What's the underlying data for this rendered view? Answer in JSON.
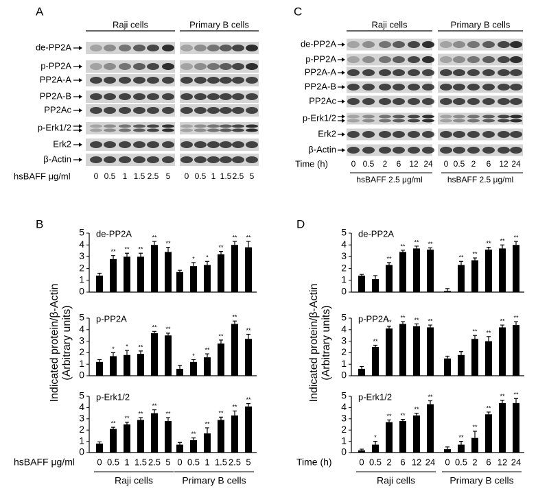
{
  "blots": [
    {
      "label": "A",
      "groups": [
        "Raji cells",
        "Primary B cells"
      ],
      "rows": [
        "de-PP2A",
        "p-PP2A",
        "PP2A-A",
        "PP2A-B",
        "PP2Ac",
        "p-Erk1/2",
        "Erk2",
        "β-Actin"
      ],
      "xlabel": "hsBAFF μg/ml",
      "lanes": [
        "0",
        "0.5",
        "1",
        "1.5",
        "2.5",
        "5",
        "0",
        "0.5",
        "1",
        "1.5",
        "2.5",
        "5"
      ]
    },
    {
      "label": "C",
      "groups": [
        "Raji cells",
        "Primary B cells"
      ],
      "rows": [
        "de-PP2A",
        "p-PP2A",
        "PP2A-A",
        "PP2A-B",
        "PP2Ac",
        "p-Erk1/2",
        "Erk2",
        "β-Actin"
      ],
      "xlabel": "Time (h)",
      "lanes": [
        "0",
        "0.5",
        "2",
        "6",
        "12",
        "24",
        "0",
        "0.5",
        "2",
        "6",
        "12",
        "24"
      ],
      "group_notes": [
        "hsBAFF 2.5 μg/ml",
        "hsBAFF 2.5 μg/ml"
      ]
    }
  ],
  "figure_panels": [
    {
      "label": "B",
      "ylabel": [
        "Indicated protein/β-Actin",
        "(Arbitrary units)"
      ]
    },
    {
      "label": "D",
      "ylabel": [
        "Indicated protein/β-Actin",
        "(Arbitrary units)"
      ]
    }
  ],
  "chart_data": [
    {
      "type": "bar",
      "title": "de-PP2A",
      "color": "#000000",
      "ylim": [
        0,
        5
      ],
      "yticks": [
        0,
        1,
        2,
        3,
        4,
        5
      ],
      "values": [
        1.4,
        2.8,
        3.0,
        3.0,
        4.0,
        3.4,
        1.7,
        2.2,
        2.3,
        3.2,
        4.0,
        3.8
      ],
      "errors": [
        0.2,
        0.3,
        0.3,
        0.3,
        0.3,
        0.4,
        0.15,
        0.3,
        0.3,
        0.25,
        0.3,
        0.5
      ],
      "stars": [
        null,
        "**",
        "**",
        "**",
        "**",
        "**",
        null,
        "*",
        "*",
        "**",
        "**",
        "**"
      ]
    },
    {
      "type": "bar",
      "title": "p-PP2A",
      "color": "#000000",
      "ylim": [
        0,
        5
      ],
      "yticks": [
        0,
        1,
        2,
        3,
        4,
        5
      ],
      "values": [
        1.2,
        1.7,
        1.8,
        1.9,
        3.7,
        3.5,
        0.6,
        1.2,
        1.6,
        2.8,
        4.5,
        3.2
      ],
      "errors": [
        0.2,
        0.3,
        0.4,
        0.25,
        0.15,
        0.2,
        0.3,
        0.2,
        0.3,
        0.3,
        0.25,
        0.4
      ],
      "stars": [
        null,
        "*",
        "*",
        "**",
        "**",
        "**",
        null,
        "*",
        "**",
        "**",
        "**",
        "**"
      ]
    },
    {
      "type": "bar",
      "title": "p-Erk1/2",
      "color": "#000000",
      "ylim": [
        0,
        5
      ],
      "yticks": [
        0,
        1,
        2,
        3,
        4,
        5
      ],
      "values": [
        0.8,
        2.1,
        2.5,
        2.9,
        3.5,
        2.8,
        0.7,
        1.1,
        1.7,
        2.9,
        3.3,
        4.1
      ],
      "errors": [
        0.15,
        0.15,
        0.2,
        0.2,
        0.3,
        0.3,
        0.2,
        0.2,
        0.5,
        0.25,
        0.4,
        0.25
      ],
      "stars": [
        null,
        "**",
        "**",
        "**",
        "**",
        "**",
        null,
        "**",
        "**",
        "**",
        "**",
        "**"
      ],
      "categories": [
        "0",
        "0.5",
        "1",
        "1.5",
        "2.5",
        "5",
        "0",
        "0.5",
        "1",
        "1.5",
        "2.5",
        "5"
      ],
      "xlabel": "hsBAFF μg/ml",
      "groups": [
        "Raji cells",
        "Primary B cells"
      ]
    },
    {
      "type": "bar",
      "title": "de-PP2A",
      "color": "#000000",
      "ylim": [
        0,
        5
      ],
      "yticks": [
        0,
        1,
        2,
        3,
        4,
        5
      ],
      "values": [
        1.4,
        1.1,
        2.3,
        3.4,
        3.7,
        3.6,
        0.1,
        2.3,
        2.7,
        3.6,
        3.7,
        4.0
      ],
      "errors": [
        0.1,
        0.3,
        0.2,
        0.15,
        0.2,
        0.15,
        0.2,
        0.3,
        0.2,
        0.2,
        0.3,
        0.3
      ],
      "stars": [
        null,
        null,
        "**",
        "**",
        "**",
        "**",
        null,
        "**",
        "**",
        "**",
        "**",
        "**"
      ]
    },
    {
      "type": "bar",
      "title": "p-PP2A",
      "color": "#000000",
      "ylim": [
        0,
        5
      ],
      "yticks": [
        0,
        1,
        2,
        3,
        4,
        5
      ],
      "values": [
        0.6,
        2.5,
        4.1,
        4.5,
        4.3,
        4.2,
        1.5,
        1.8,
        3.2,
        3.0,
        4.2,
        4.4
      ],
      "errors": [
        0.2,
        0.15,
        0.2,
        0.2,
        0.2,
        0.2,
        0.2,
        0.3,
        0.3,
        0.4,
        0.2,
        0.3
      ],
      "stars": [
        null,
        "**",
        "**",
        "**",
        "**",
        "**",
        null,
        null,
        "**",
        "**",
        "**",
        "**"
      ]
    },
    {
      "type": "bar",
      "title": "p-Erk1/2",
      "color": "#000000",
      "ylim": [
        0,
        5
      ],
      "yticks": [
        0,
        1,
        2,
        3,
        4,
        5
      ],
      "values": [
        0.2,
        0.7,
        2.7,
        2.8,
        3.3,
        4.3,
        0.3,
        0.7,
        1.3,
        3.4,
        4.4,
        4.4
      ],
      "errors": [
        0.1,
        0.3,
        0.2,
        0.15,
        0.2,
        0.3,
        0.2,
        0.3,
        0.6,
        0.2,
        0.25,
        0.4
      ],
      "stars": [
        null,
        "*",
        "**",
        "**",
        "**",
        "**",
        null,
        "**",
        "**",
        "**",
        "**",
        "**"
      ],
      "categories": [
        "0",
        "0.5",
        "2",
        "6",
        "12",
        "24",
        "0",
        "0.5",
        "2",
        "6",
        "12",
        "24"
      ],
      "xlabel": "Time (h)",
      "groups": [
        "Raji cells",
        "Primary B cells"
      ]
    }
  ]
}
